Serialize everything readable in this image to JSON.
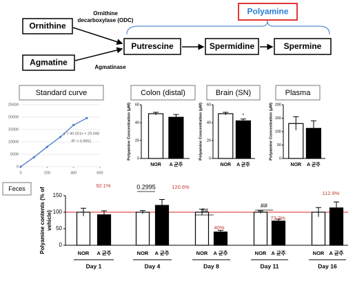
{
  "diagram": {
    "nodes": [
      "Ornithine",
      "Agmatine",
      "Putrescine",
      "Spermidine",
      "Spermine"
    ],
    "enzymes": [
      "Ornithine decarboxylase (ODC)",
      "Agmatinase"
    ],
    "group_label": "Polyamine"
  },
  "chart_data": [
    {
      "type": "line",
      "title": "Standard curve",
      "x": [
        0,
        100,
        200,
        300,
        400,
        500
      ],
      "values": [
        0,
        3800,
        8000,
        12000,
        16800,
        19600
      ],
      "color": "#4a7cc7",
      "xlim": [
        0,
        600
      ],
      "xticks": [
        0,
        200,
        400,
        600
      ],
      "ylim": [
        0,
        25000
      ],
      "yticks": [
        0,
        5000,
        10000,
        15000,
        20000,
        25000
      ],
      "grid": true,
      "annotations": [
        "y = 40.021x + 29.048",
        "R² = 0.9951"
      ]
    },
    {
      "type": "bar",
      "title": "Colon (distal)",
      "categories": [
        "NOR",
        "A 균주"
      ],
      "values": [
        50,
        46
      ],
      "errors": [
        1.5,
        3
      ],
      "colors": [
        "#ffffff",
        "#000000"
      ],
      "ylim": [
        0,
        60
      ],
      "yticks": [
        0,
        20,
        40,
        60
      ],
      "y_label": "Polyamine Concentration (μM)",
      "significance": [
        null,
        null
      ]
    },
    {
      "type": "bar",
      "title": "Brain (SN)",
      "categories": [
        "NOR",
        "A 균주"
      ],
      "values": [
        50,
        42
      ],
      "errors": [
        1.5,
        2
      ],
      "colors": [
        "#ffffff",
        "#000000"
      ],
      "ylim": [
        0,
        60
      ],
      "yticks": [
        0,
        20,
        40,
        60
      ],
      "y_label": "Polyamine Concentration (μM)",
      "significance": [
        null,
        "*"
      ]
    },
    {
      "type": "bar",
      "title": "Plasma",
      "categories": [
        "NOR",
        "A 균주"
      ],
      "values": [
        130,
        112
      ],
      "errors": [
        25,
        28
      ],
      "colors": [
        "#ffffff",
        "#000000"
      ],
      "ylim": [
        0,
        200
      ],
      "yticks": [
        0,
        50,
        100,
        150,
        200
      ],
      "y_label": "Polyamine Concentration (μM)",
      "significance": [
        null,
        null
      ]
    },
    {
      "type": "grouped-bar",
      "title": "Feces",
      "categories": [
        "Day 1",
        "Day 4",
        "Day 8",
        "Day 11",
        "Day 16"
      ],
      "series": [
        {
          "name": "NOR",
          "color": "#ffffff",
          "values": [
            100,
            100,
            100,
            100,
            100
          ],
          "errors": [
            12,
            5,
            9,
            4,
            14
          ]
        },
        {
          "name": "A 균주",
          "color": "#000000",
          "values": [
            92.1,
            120.6,
            40,
            73.2,
            112.9
          ],
          "errors": [
            12,
            18,
            5,
            6,
            18
          ],
          "value_labels": [
            "92.1%",
            "120.6%",
            "40%",
            "73.2%",
            "112.9%"
          ]
        }
      ],
      "ylim": [
        0,
        150
      ],
      "yticks": [
        0,
        50,
        100,
        150
      ],
      "y_label": "Polyamine contents (% of vehicle)",
      "reference_line": 100,
      "reference_color": "#e02020",
      "significance": [
        null,
        "0.2995",
        "##",
        "##",
        null
      ]
    }
  ]
}
